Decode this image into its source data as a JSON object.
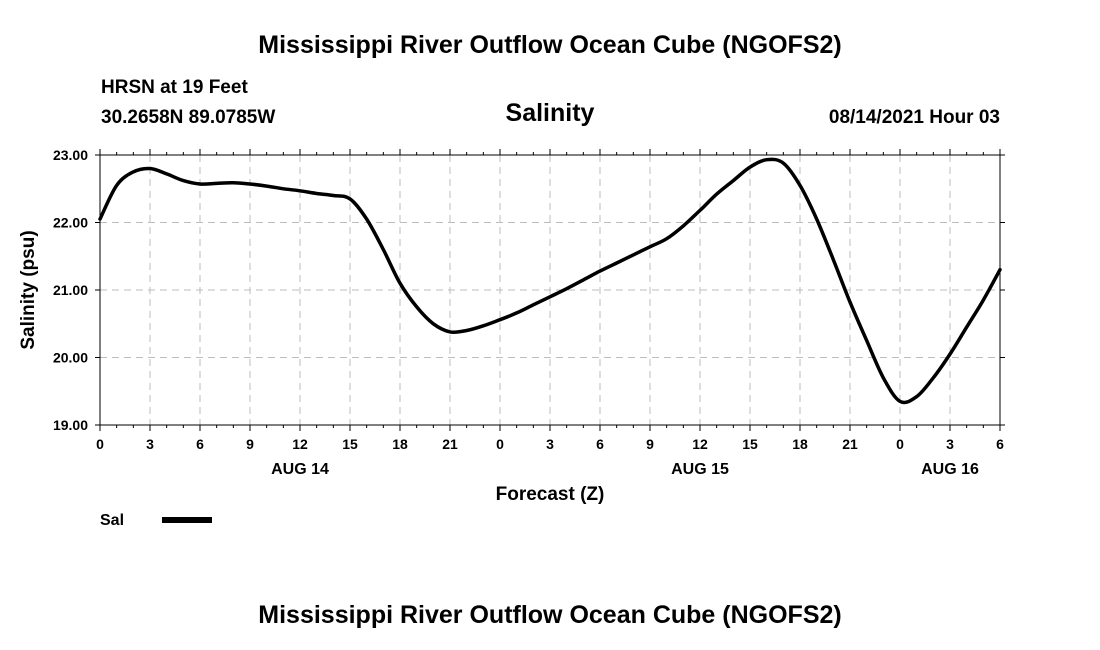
{
  "header": {
    "title": "Mississippi River Outflow Ocean Cube (NGOFS2)",
    "station": "HRSN at 19 Feet",
    "coords": "30.2658N  89.0785W",
    "variable": "Salinity",
    "timestamp": "08/14/2021 Hour 03"
  },
  "footer": {
    "title": "Mississippi River Outflow Ocean Cube (NGOFS2)"
  },
  "legend": {
    "label": "Sal"
  },
  "chart_data": {
    "type": "line",
    "title": "Salinity",
    "xlabel": "Forecast (Z)",
    "ylabel": "Salinity (psu)",
    "ylim": [
      19.0,
      23.0
    ],
    "xlim": [
      0,
      54
    ],
    "grid": true,
    "y_ticks": [
      "19.00",
      "20.00",
      "21.00",
      "22.00",
      "23.00"
    ],
    "y_tick_values": [
      19,
      20,
      21,
      22,
      23
    ],
    "x_tick_values": [
      0,
      3,
      6,
      9,
      12,
      15,
      18,
      21,
      24,
      27,
      30,
      33,
      36,
      39,
      42,
      45,
      48,
      51,
      54
    ],
    "x_tick_labels": [
      "0",
      "3",
      "6",
      "9",
      "12",
      "15",
      "18",
      "21",
      "0",
      "3",
      "6",
      "9",
      "12",
      "15",
      "18",
      "21",
      "0",
      "3",
      "6"
    ],
    "date_labels": [
      {
        "hour": 12,
        "label": "AUG 14"
      },
      {
        "hour": 36,
        "label": "AUG 15"
      },
      {
        "hour": 51,
        "label": "AUG 16"
      }
    ],
    "series": [
      {
        "name": "Sal",
        "x": [
          0,
          1,
          2,
          3,
          4,
          5,
          6,
          7,
          8,
          9,
          10,
          11,
          12,
          13,
          14,
          15,
          16,
          17,
          18,
          19,
          20,
          21,
          22,
          23,
          24,
          25,
          26,
          27,
          28,
          29,
          30,
          31,
          32,
          33,
          34,
          35,
          36,
          37,
          38,
          39,
          40,
          41,
          42,
          43,
          44,
          45,
          46,
          47,
          48,
          49,
          50,
          51,
          52,
          53,
          54
        ],
        "values": [
          22.05,
          22.55,
          22.75,
          22.8,
          22.72,
          22.62,
          22.57,
          22.58,
          22.59,
          22.57,
          22.54,
          22.5,
          22.47,
          22.43,
          22.4,
          22.35,
          22.05,
          21.6,
          21.1,
          20.75,
          20.5,
          20.38,
          20.4,
          20.47,
          20.56,
          20.66,
          20.78,
          20.9,
          21.02,
          21.15,
          21.28,
          21.4,
          21.52,
          21.64,
          21.76,
          21.95,
          22.18,
          22.42,
          22.62,
          22.82,
          22.93,
          22.88,
          22.55,
          22.05,
          21.45,
          20.82,
          20.25,
          19.7,
          19.35,
          19.42,
          19.7,
          20.05,
          20.45,
          20.85,
          21.3
        ]
      }
    ]
  }
}
